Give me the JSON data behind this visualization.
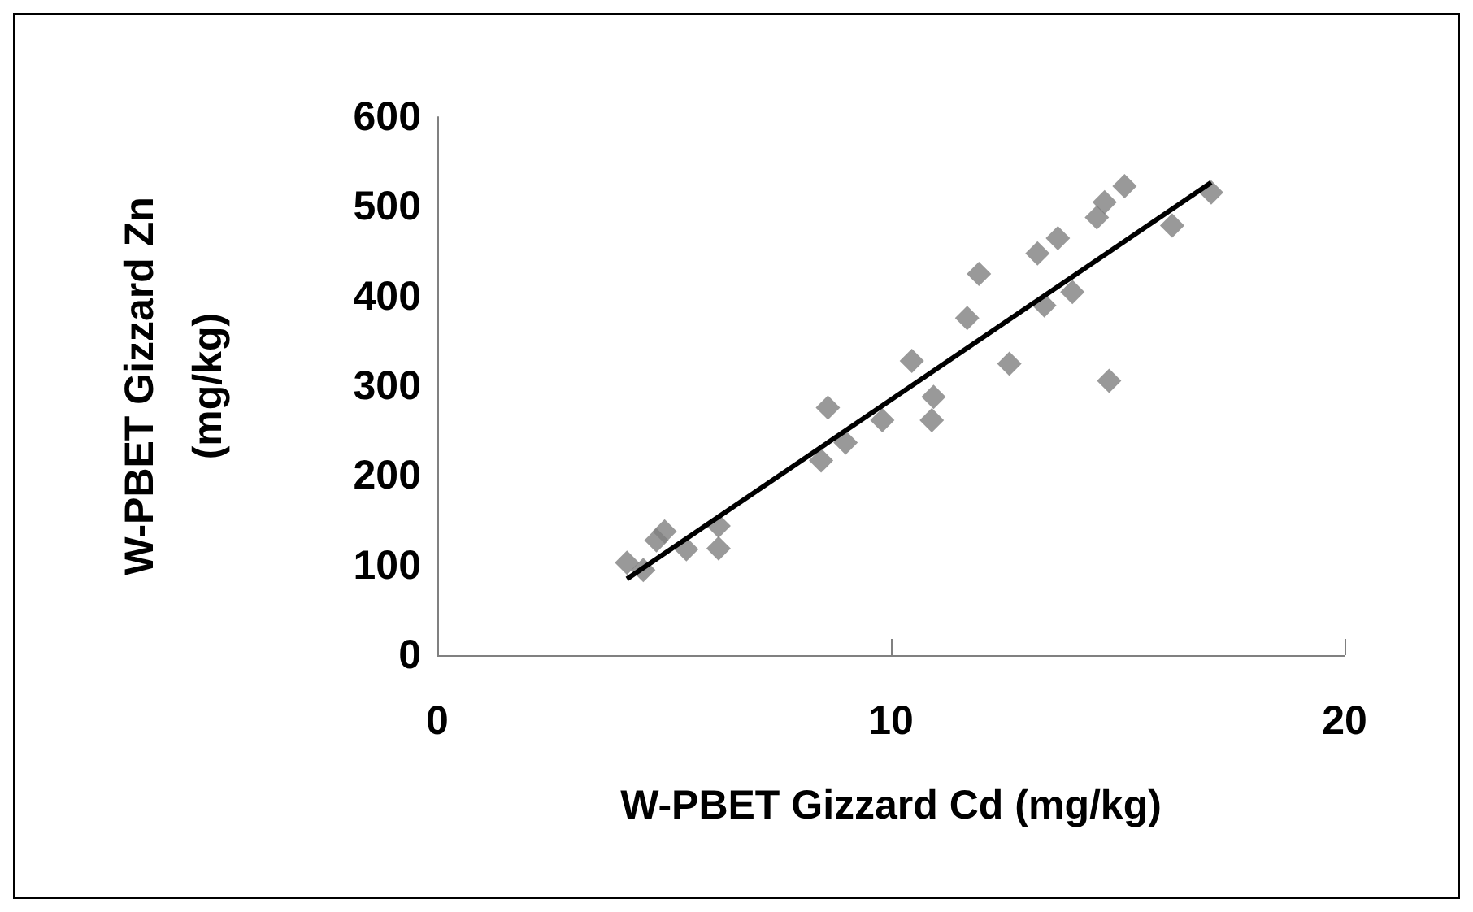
{
  "chart_data": {
    "type": "scatter",
    "xlabel": "W-PBET Gizzard Cd (mg/kg)",
    "ylabel": "W-PBET Gizzard Zn\n(mg/kg)",
    "xlim": [
      0,
      20
    ],
    "xticks": [
      0,
      10,
      20
    ],
    "ylim": [
      0,
      600
    ],
    "yticks": [
      0,
      100,
      200,
      300,
      400,
      500,
      600
    ],
    "grid": false,
    "marker": "diamond",
    "series": [
      {
        "color": "#808080",
        "x": [
          4.18,
          4.54,
          4.83,
          5.01,
          5.49,
          6.2,
          6.2,
          8.46,
          8.61,
          9.0,
          9.81,
          10.46,
          10.9,
          10.94,
          11.68,
          11.94,
          12.61,
          13.23,
          13.38,
          13.68,
          14.0,
          14.54,
          14.71,
          14.81,
          15.15,
          16.2,
          17.06
        ],
        "values": [
          103,
          95,
          128,
          138,
          118,
          119,
          144,
          217,
          276,
          237,
          262,
          328,
          262,
          288,
          376,
          425,
          325,
          448,
          390,
          465,
          405,
          488,
          505,
          306,
          523,
          479,
          516
        ]
      },
      {
        "type": "line",
        "color": "#000000",
        "marker": "none",
        "x": [
          4.18,
          17.06
        ],
        "values": [
          85,
          527
        ]
      }
    ]
  }
}
